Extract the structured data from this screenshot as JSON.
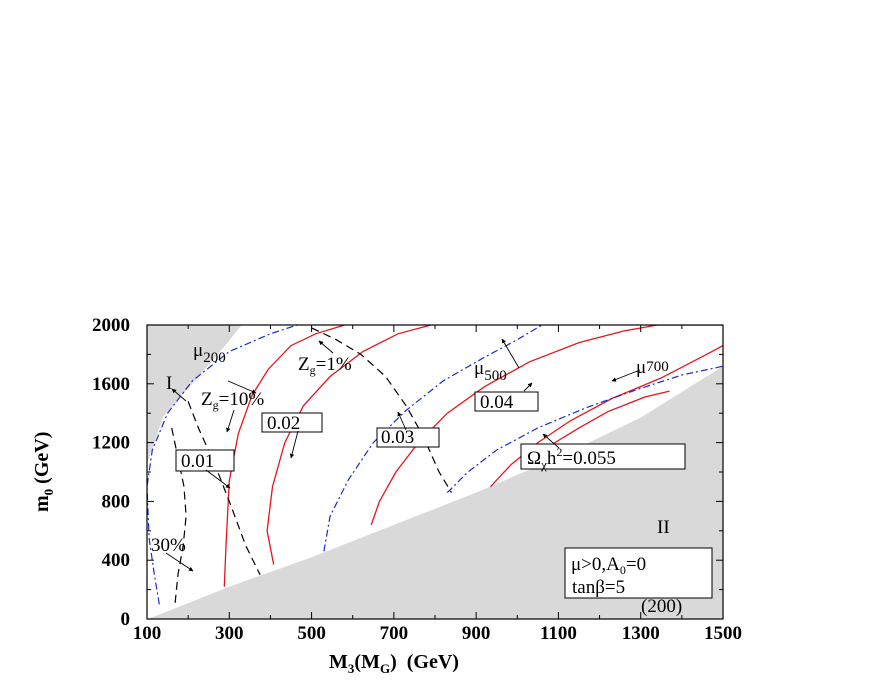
{
  "chart_data": {
    "type": "line",
    "xlabel": {
      "main": "M",
      "sub1": "3",
      "paren_main": "M",
      "sub2": "G",
      "unit": "(GeV)"
    },
    "ylabel": {
      "main": "m",
      "sub": "0",
      "unit": "(GeV)"
    },
    "xlim": [
      100,
      1500
    ],
    "ylim": [
      0,
      2000
    ],
    "x_ticks": [
      "100",
      "300",
      "500",
      "700",
      "900",
      "1100",
      "1300",
      "1500"
    ],
    "y_ticks": [
      "0",
      "400",
      "800",
      "1200",
      "1600",
      "2000"
    ],
    "x_tick_values": [
      100,
      300,
      500,
      700,
      900,
      1100,
      1300,
      1500
    ],
    "y_tick_values": [
      0,
      400,
      800,
      1200,
      1600,
      2000
    ],
    "colors": {
      "relic": "#e8141c",
      "mu": "#1a2bd6",
      "zg": "#000000",
      "excluded": "#d9d9d9"
    },
    "excluded_regions": [
      {
        "name": "I",
        "points": [
          [
            100,
            2000
          ],
          [
            330,
            2000
          ],
          [
            290,
            1860
          ],
          [
            210,
            1600
          ],
          [
            140,
            1380
          ],
          [
            100,
            1060
          ]
        ]
      },
      {
        "name": "II",
        "points": [
          [
            100,
            0
          ],
          [
            130,
            30
          ],
          [
            300,
            220
          ],
          [
            500,
            420
          ],
          [
            700,
            640
          ],
          [
            900,
            860
          ],
          [
            1100,
            1100
          ],
          [
            1300,
            1370
          ],
          [
            1500,
            1720
          ],
          [
            1500,
            0
          ]
        ]
      }
    ],
    "region_labels": {
      "region_I": "I",
      "region_II": "II"
    },
    "relic_curves": [
      {
        "label": "0.01",
        "points": [
          [
            288,
            220
          ],
          [
            292,
            500
          ],
          [
            300,
            940
          ],
          [
            322,
            1260
          ],
          [
            355,
            1520
          ],
          [
            395,
            1700
          ],
          [
            450,
            1860
          ],
          [
            510,
            1940
          ],
          [
            580,
            2000
          ]
        ]
      },
      {
        "label": "0.02",
        "points": [
          [
            408,
            370
          ],
          [
            392,
            600
          ],
          [
            405,
            900
          ],
          [
            435,
            1200
          ],
          [
            480,
            1450
          ],
          [
            545,
            1650
          ],
          [
            625,
            1820
          ],
          [
            710,
            1940
          ],
          [
            790,
            2000
          ]
        ]
      },
      {
        "label": "0.03",
        "points": [
          [
            645,
            640
          ],
          [
            665,
            800
          ],
          [
            705,
            1000
          ],
          [
            760,
            1200
          ],
          [
            830,
            1400
          ],
          [
            920,
            1580
          ],
          [
            1030,
            1750
          ],
          [
            1150,
            1880
          ],
          [
            1260,
            1960
          ],
          [
            1340,
            2000
          ],
          [
            1500,
            2000
          ]
        ]
      },
      {
        "label": "0.04",
        "points": [
          [
            935,
            900
          ],
          [
            985,
            1050
          ],
          [
            1050,
            1200
          ],
          [
            1130,
            1350
          ],
          [
            1230,
            1500
          ],
          [
            1350,
            1640
          ],
          [
            1460,
            1800
          ],
          [
            1500,
            1860
          ]
        ]
      },
      {
        "label": "0.055",
        "points": [
          [
            1020,
            1070
          ],
          [
            1080,
            1180
          ],
          [
            1150,
            1300
          ],
          [
            1220,
            1410
          ],
          [
            1310,
            1510
          ],
          [
            1370,
            1550
          ]
        ]
      }
    ],
    "relic_labels": {
      "l001": "0.01",
      "l002": "0.02",
      "l003": "0.03",
      "l004": "0.04",
      "omega_main": "Ω",
      "omega_sub": "χ",
      "omega_h": "h",
      "omega_sup": "2",
      "omega_val": "=0.055"
    },
    "mu_curves": [
      {
        "label": "μ200",
        "points": [
          [
            130,
            100
          ],
          [
            118,
            300
          ],
          [
            105,
            550
          ],
          [
            100,
            900
          ],
          [
            113,
            1150
          ],
          [
            150,
            1400
          ],
          [
            210,
            1620
          ],
          [
            300,
            1820
          ],
          [
            400,
            1940
          ],
          [
            465,
            2000
          ]
        ]
      },
      {
        "label": "μ500",
        "points": [
          [
            530,
            460
          ],
          [
            545,
            700
          ],
          [
            590,
            950
          ],
          [
            650,
            1200
          ],
          [
            730,
            1420
          ],
          [
            820,
            1620
          ],
          [
            920,
            1780
          ],
          [
            1000,
            1900
          ],
          [
            1060,
            2000
          ]
        ]
      },
      {
        "label": "μ700",
        "points": [
          [
            830,
            860
          ],
          [
            880,
            1000
          ],
          [
            950,
            1150
          ],
          [
            1050,
            1300
          ],
          [
            1170,
            1440
          ],
          [
            1290,
            1560
          ],
          [
            1400,
            1660
          ],
          [
            1500,
            1720
          ]
        ]
      }
    ],
    "mu_labels": {
      "mu": "μ",
      "s200": "200",
      "s500": "500",
      "s700": "700"
    },
    "zg_curves": [
      {
        "label": "30%",
        "points": [
          [
            160,
            1300
          ],
          [
            175,
            1100
          ],
          [
            190,
            900
          ],
          [
            195,
            700
          ],
          [
            188,
            500
          ],
          [
            175,
            300
          ],
          [
            168,
            100
          ]
        ]
      },
      {
        "label": "10%",
        "points": [
          [
            200,
            1480
          ],
          [
            225,
            1300
          ],
          [
            265,
            1050
          ],
          [
            300,
            800
          ],
          [
            340,
            500
          ],
          [
            375,
            300
          ]
        ]
      },
      {
        "label": "1%",
        "points": [
          [
            500,
            1980
          ],
          [
            560,
            1900
          ],
          [
            620,
            1800
          ],
          [
            680,
            1650
          ],
          [
            730,
            1450
          ],
          [
            770,
            1250
          ],
          [
            810,
            1000
          ],
          [
            840,
            860
          ]
        ]
      }
    ],
    "zg_labels": {
      "z": "Z",
      "sub": "g",
      "v30": "30%",
      "v10": "=10%",
      "v1": "=1%"
    },
    "params_box": {
      "line1a": "μ>0,A",
      "line1sub": "0",
      "line1b": "=0",
      "line2": "tanβ=5",
      "line3": "(200)"
    }
  }
}
